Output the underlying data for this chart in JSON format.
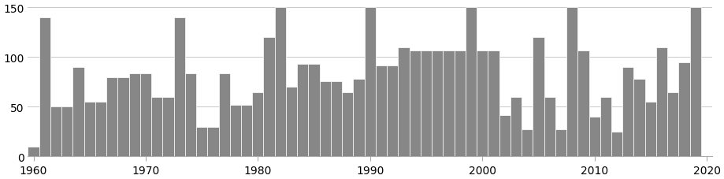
{
  "years": [
    1960,
    1961,
    1962,
    1963,
    1964,
    1965,
    1966,
    1967,
    1968,
    1969,
    1970,
    1971,
    1972,
    1973,
    1974,
    1975,
    1976,
    1977,
    1978,
    1979,
    1980,
    1981,
    1982,
    1983,
    1984,
    1985,
    1986,
    1987,
    1988,
    1989,
    1990,
    1991,
    1992,
    1993,
    1994,
    1995,
    1996,
    1997,
    1998,
    1999,
    2000,
    2001,
    2002,
    2003,
    2004,
    2005,
    2006,
    2007,
    2008,
    2009,
    2010,
    2011,
    2012,
    2013,
    2014,
    2015,
    2016,
    2017,
    2018,
    2019
  ],
  "values": [
    10,
    140,
    50,
    50,
    90,
    55,
    55,
    80,
    80,
    84,
    84,
    60,
    60,
    140,
    84,
    30,
    30,
    84,
    52,
    52,
    65,
    120,
    150,
    70,
    93,
    93,
    76,
    76,
    65,
    78,
    150,
    92,
    92,
    110,
    107,
    107,
    107,
    107,
    107,
    150,
    107,
    107,
    42,
    60,
    27,
    120,
    60,
    27,
    150,
    107,
    40,
    60,
    25,
    90,
    78,
    55,
    110,
    65,
    95,
    150
  ],
  "bar_color": "#878787",
  "background_color": "#ffffff",
  "ylim": [
    0,
    155
  ],
  "yticks": [
    0,
    50,
    100,
    150
  ],
  "xticks": [
    1960,
    1970,
    1980,
    1990,
    2000,
    2010,
    2020
  ],
  "grid_color": "#c8c8c8",
  "bar_width": 1.0
}
